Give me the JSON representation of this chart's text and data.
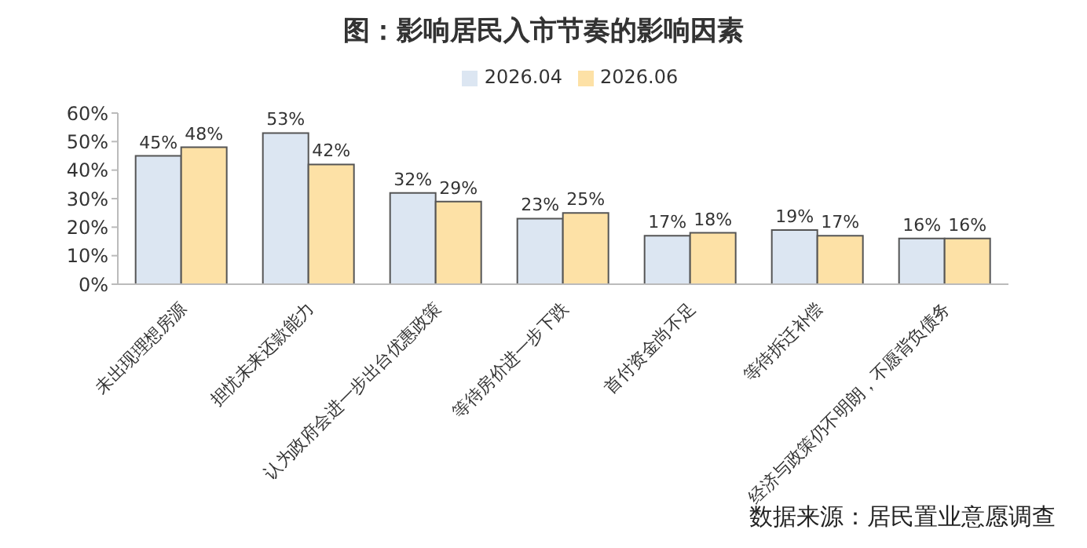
{
  "chart_data": {
    "type": "bar",
    "title": "图：影响居民入市节奏的影响因素",
    "categories": [
      "未出现理想房源",
      "担忧未来还款能力",
      "认为政府会进一步出台优惠政策",
      "等待房价进一步下跌",
      "首付资金尚不足",
      "等待拆迁补偿",
      "经济与政策仍不明朗，不愿背负债务"
    ],
    "series": [
      {
        "name": "2026.04",
        "color": "#dce6f2",
        "values": [
          45,
          53,
          32,
          23,
          17,
          19,
          16
        ],
        "value_labels": [
          "45%",
          "53%",
          "32%",
          "23%",
          "17%",
          "19%",
          "16%"
        ]
      },
      {
        "name": "2026.06",
        "color": "#fde1a6",
        "values": [
          48,
          42,
          29,
          25,
          18,
          17,
          16
        ],
        "value_labels": [
          "48%",
          "42%",
          "29%",
          "25%",
          "18%",
          "17%",
          "16%"
        ]
      }
    ],
    "ylim": [
      0,
      60
    ],
    "yticks": [
      {
        "value": 0,
        "label": "0%"
      },
      {
        "value": 10,
        "label": "10%"
      },
      {
        "value": 20,
        "label": "20%"
      },
      {
        "value": 30,
        "label": "30%"
      },
      {
        "value": 40,
        "label": "40%"
      },
      {
        "value": 50,
        "label": "50%"
      },
      {
        "value": 60,
        "label": "60%"
      }
    ],
    "grid": false,
    "legend": "top",
    "annotations": [
      "数据来源：居民置业意愿调查"
    ]
  }
}
